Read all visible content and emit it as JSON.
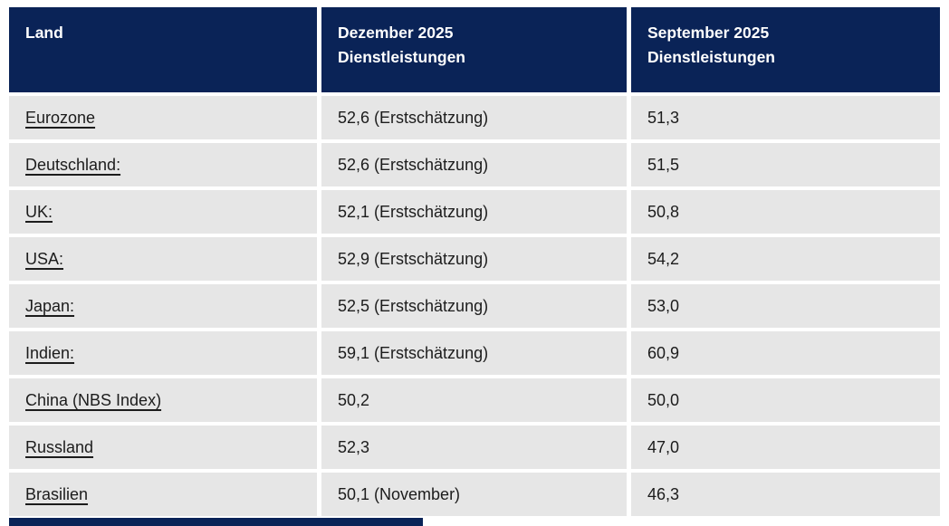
{
  "chart_data": {
    "type": "table",
    "title": "",
    "columns": [
      {
        "label": "Land",
        "line1": "Land",
        "line2": ""
      },
      {
        "label": "Dezember 2025 Dienstleistungen",
        "line1": "Dezember 2025",
        "line2": "Dienstleistungen"
      },
      {
        "label": "September 2025 Dienstleistungen",
        "line1": "September 2025",
        "line2": "Dienstleistungen"
      }
    ],
    "rows": [
      {
        "land": "Eurozone",
        "dezember_2025": "52,6 (Erstschätzung)",
        "september_2025": "51,3"
      },
      {
        "land": "Deutschland:",
        "dezember_2025": "52,6 (Erstschätzung)",
        "september_2025": "51,5"
      },
      {
        "land": "UK:",
        "dezember_2025": "52,1 (Erstschätzung)",
        "september_2025": "50,8"
      },
      {
        "land": "USA:",
        "dezember_2025": "52,9 (Erstschätzung)",
        "september_2025": "54,2"
      },
      {
        "land": "Japan:",
        "dezember_2025": "52,5 (Erstschätzung)",
        "september_2025": "53,0"
      },
      {
        "land": "Indien:",
        "dezember_2025": "59,1 (Erstschätzung)",
        "september_2025": "60,9"
      },
      {
        "land": "China (NBS Index)",
        "dezember_2025": "50,2",
        "september_2025": "50,0"
      },
      {
        "land": "Russland",
        "dezember_2025": "52,3",
        "september_2025": "47,0"
      },
      {
        "land": "Brasilien",
        "dezember_2025": "50,1 (November)",
        "september_2025": "46,3"
      }
    ],
    "layout": {
      "header_position": "top",
      "grid": "separated-cells",
      "country_links_underlined": true
    }
  },
  "colors": {
    "header_bg": "#0a2357",
    "header_text": "#ffffff",
    "row_bg": "#e6e6e6",
    "cell_text": "#1c1c1c",
    "page_bg": "#ffffff"
  }
}
